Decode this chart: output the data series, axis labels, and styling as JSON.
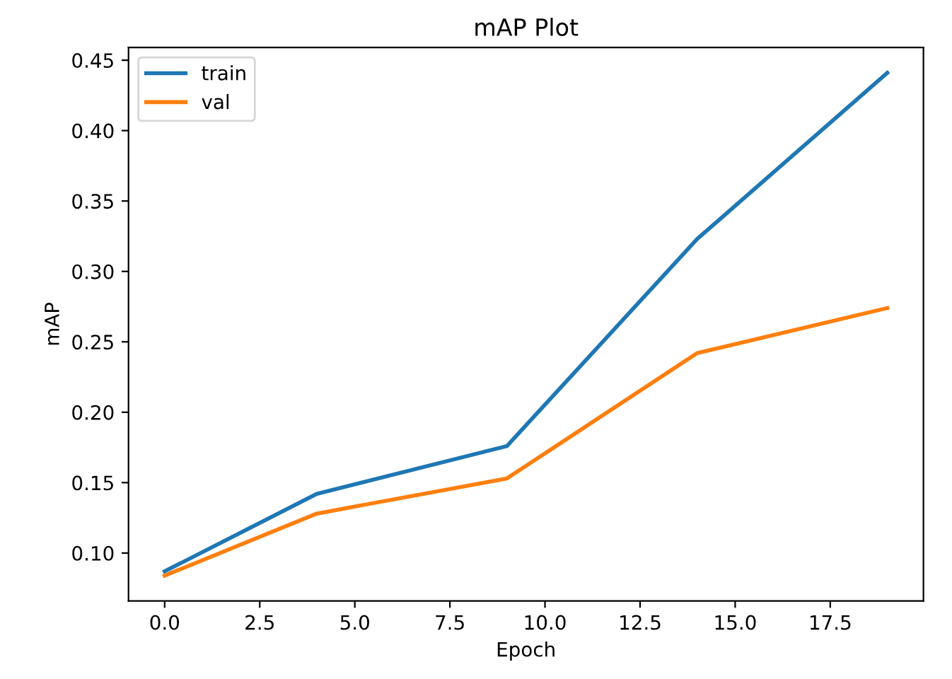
{
  "chart_data": {
    "type": "line",
    "title": "mAP Plot",
    "xlabel": "Epoch",
    "ylabel": "mAP",
    "x": [
      0,
      4,
      9,
      14,
      19
    ],
    "series": [
      {
        "name": "train",
        "color": "#1f77b4",
        "values": [
          0.087,
          0.142,
          0.176,
          0.323,
          0.441
        ]
      },
      {
        "name": "val",
        "color": "#ff7f0e",
        "values": [
          0.084,
          0.128,
          0.153,
          0.242,
          0.274
        ]
      }
    ],
    "xlim": [
      -0.95,
      19.95
    ],
    "xticks": [
      {
        "value": 0,
        "label": "0.0"
      },
      {
        "value": 2.5,
        "label": "2.5"
      },
      {
        "value": 5,
        "label": "5.0"
      },
      {
        "value": 7.5,
        "label": "7.5"
      },
      {
        "value": 10,
        "label": "10.0"
      },
      {
        "value": 12.5,
        "label": "12.5"
      },
      {
        "value": 15,
        "label": "15.0"
      },
      {
        "value": 17.5,
        "label": "17.5"
      }
    ],
    "ylim": [
      0.066,
      0.459
    ],
    "yticks": [
      {
        "value": 0.1,
        "label": "0.10"
      },
      {
        "value": 0.15,
        "label": "0.15"
      },
      {
        "value": 0.2,
        "label": "0.20"
      },
      {
        "value": 0.25,
        "label": "0.25"
      },
      {
        "value": 0.3,
        "label": "0.30"
      },
      {
        "value": 0.35,
        "label": "0.35"
      },
      {
        "value": 0.4,
        "label": "0.40"
      },
      {
        "value": 0.45,
        "label": "0.45"
      }
    ],
    "legend": "upper left",
    "grid": false,
    "marker": "none",
    "line_style": "solid"
  }
}
